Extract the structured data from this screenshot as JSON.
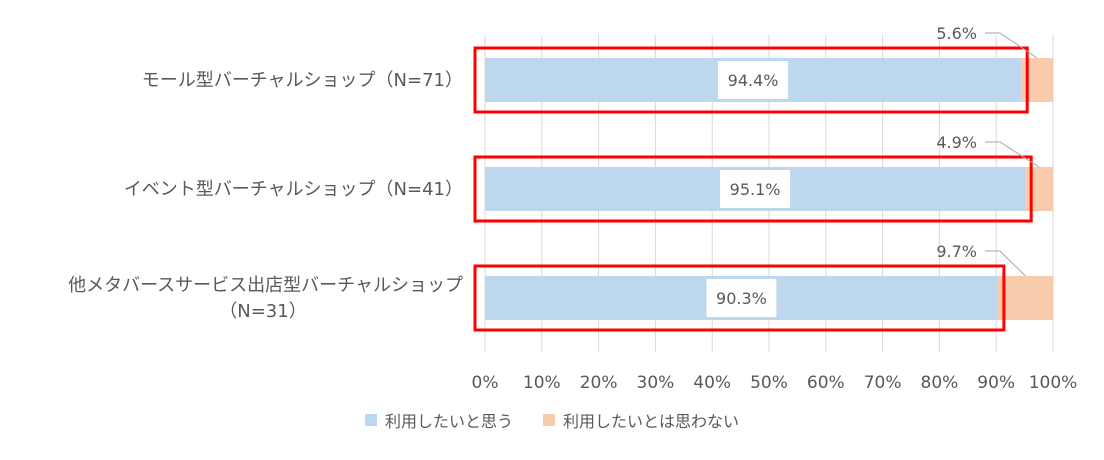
{
  "chart_data": {
    "type": "bar",
    "orientation": "horizontal",
    "stacked": true,
    "categories": [
      [
        "モール型バーチャルショップ（N=71）"
      ],
      [
        "イベント型バーチャルショップ（N=41）"
      ],
      [
        "他メタバースサービス出店型バーチャルショップ",
        "（N=31）"
      ]
    ],
    "series": [
      {
        "name": "利用したいと思う",
        "color": "#bdd7ee",
        "values": [
          94.4,
          95.1,
          90.3
        ],
        "labels": [
          "94.4%",
          "95.1%",
          "90.3%"
        ]
      },
      {
        "name": "利用したいとは思わない",
        "color": "#f8cbad",
        "values": [
          5.6,
          4.9,
          9.7
        ],
        "labels": [
          "5.6%",
          "4.9%",
          "9.7%"
        ]
      }
    ],
    "xlim": [
      0,
      100
    ],
    "x_ticks": [
      "0%",
      "10%",
      "20%",
      "30%",
      "40%",
      "50%",
      "60%",
      "70%",
      "80%",
      "90%",
      "100%"
    ],
    "grid": "vertical",
    "legend_position": "bottom",
    "highlight_color": "#ff0000"
  }
}
